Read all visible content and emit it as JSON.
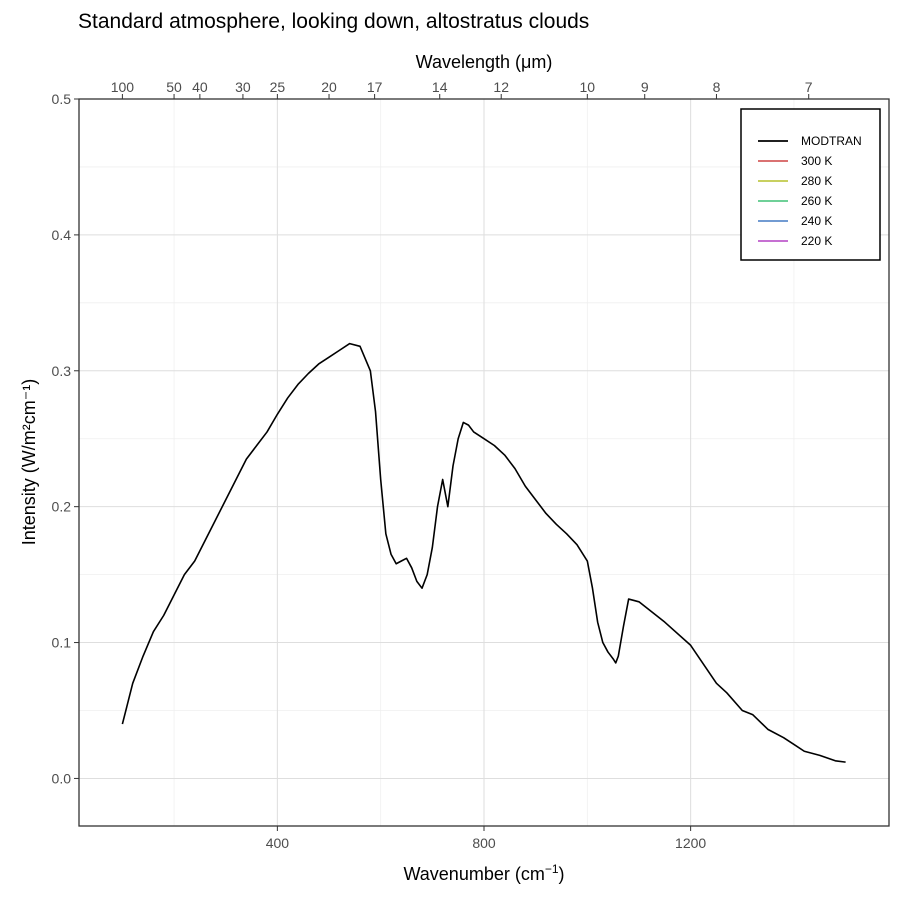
{
  "chart_data": {
    "type": "line",
    "title": "Standard atmosphere, looking down, altostratus clouds",
    "xlabel": "Wavenumber (cm",
    "xlabel_sup": "−1",
    "xlabel_tail": ")",
    "ylabel": "Intensity (W/m²cm⁻¹)",
    "top_axis_label": "Wavelength (μm)",
    "xlim": [
      100,
      1500
    ],
    "ylim": [
      0,
      0.5
    ],
    "x_ticks": [
      400,
      800,
      1200
    ],
    "x_tick_labels": [
      "400",
      "800",
      "1200"
    ],
    "y_ticks": [
      0.0,
      0.1,
      0.2,
      0.3,
      0.4,
      0.5
    ],
    "y_tick_labels": [
      "0.0",
      "0.1",
      "0.2",
      "0.3",
      "0.4",
      "0.5"
    ],
    "top_ticks": [
      100,
      50,
      40,
      30,
      25,
      20,
      17,
      14,
      12,
      10,
      9,
      8,
      7
    ],
    "top_tick_labels": [
      "100",
      "50",
      "40",
      "30",
      "25",
      "20",
      "17",
      "14",
      "12",
      "10",
      "9",
      "8",
      "7"
    ],
    "grid": true,
    "legend_position": "top-right",
    "series": [
      {
        "name": "MODTRAN",
        "color": "#000000",
        "x": [
          100,
          120,
          140,
          160,
          180,
          200,
          220,
          240,
          260,
          280,
          300,
          320,
          340,
          360,
          380,
          400,
          420,
          440,
          460,
          480,
          500,
          520,
          540,
          560,
          580,
          590,
          600,
          610,
          620,
          630,
          640,
          650,
          660,
          670,
          680,
          690,
          700,
          710,
          720,
          730,
          740,
          750,
          760,
          770,
          780,
          800,
          820,
          840,
          860,
          880,
          900,
          920,
          940,
          960,
          980,
          1000,
          1010,
          1020,
          1030,
          1040,
          1050,
          1055,
          1060,
          1070,
          1080,
          1100,
          1150,
          1200,
          1250,
          1270,
          1300,
          1320,
          1350,
          1380,
          1400,
          1420,
          1450,
          1480,
          1500
        ],
        "values": [
          0.04,
          0.07,
          0.09,
          0.108,
          0.12,
          0.135,
          0.15,
          0.16,
          0.175,
          0.19,
          0.205,
          0.22,
          0.235,
          0.245,
          0.255,
          0.268,
          0.28,
          0.29,
          0.298,
          0.305,
          0.31,
          0.315,
          0.32,
          0.318,
          0.3,
          0.27,
          0.22,
          0.18,
          0.165,
          0.158,
          0.16,
          0.162,
          0.155,
          0.145,
          0.14,
          0.15,
          0.17,
          0.2,
          0.22,
          0.2,
          0.23,
          0.25,
          0.262,
          0.26,
          0.255,
          0.25,
          0.245,
          0.238,
          0.228,
          0.215,
          0.205,
          0.195,
          0.187,
          0.18,
          0.172,
          0.16,
          0.14,
          0.115,
          0.1,
          0.093,
          0.088,
          0.085,
          0.09,
          0.112,
          0.132,
          0.13,
          0.115,
          0.098,
          0.07,
          0.063,
          0.05,
          0.047,
          0.036,
          0.03,
          0.025,
          0.02,
          0.017,
          0.013,
          0.012
        ]
      },
      {
        "name": "300 K",
        "color": "#c41e1e",
        "temperature": 300
      },
      {
        "name": "280 K",
        "color": "#a8b400",
        "temperature": 280
      },
      {
        "name": "260 K",
        "color": "#19b35a",
        "temperature": 260
      },
      {
        "name": "240 K",
        "color": "#1f5fb8",
        "temperature": 240
      },
      {
        "name": "220 K",
        "color": "#a31ab8",
        "temperature": 220
      }
    ]
  }
}
